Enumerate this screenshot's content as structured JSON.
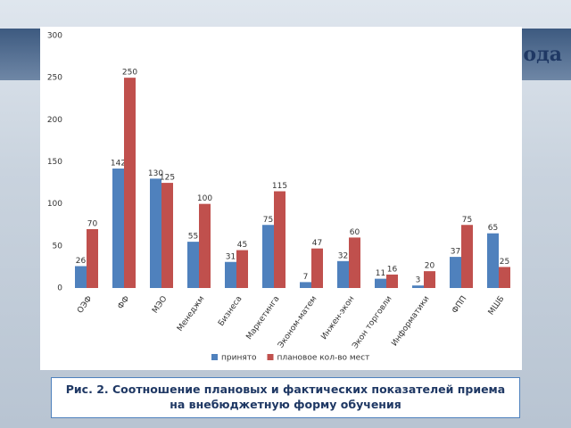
{
  "slide_title": "ода",
  "caption": [
    "Рис. 2.    Соотношение плановых и фактических показателей приема",
    "на внебюджетную форму обучения"
  ],
  "chart_data": {
    "type": "bar",
    "categories": [
      "ОЭФ",
      "ФФ",
      "МЭО",
      "Менеджм",
      "Бизнеса",
      "Маркетинга",
      "Эконом-матем",
      "Инжен-экон",
      "Экон торговли",
      "Информатики",
      "ФПП",
      "МШБ"
    ],
    "series": [
      {
        "name": "принято",
        "color": "#4f81bd",
        "values": [
          26,
          142,
          130,
          55,
          31,
          75,
          7,
          32,
          11,
          3,
          37,
          65
        ]
      },
      {
        "name": "плановое кол-во мест",
        "color": "#c0504d",
        "values": [
          70,
          250,
          125,
          100,
          45,
          115,
          47,
          60,
          16,
          20,
          75,
          25
        ]
      }
    ],
    "ylim": [
      0,
      300
    ],
    "yticks": [
      0,
      50,
      100,
      150,
      200,
      250,
      300
    ],
    "grid": false,
    "legend": "bottom"
  }
}
